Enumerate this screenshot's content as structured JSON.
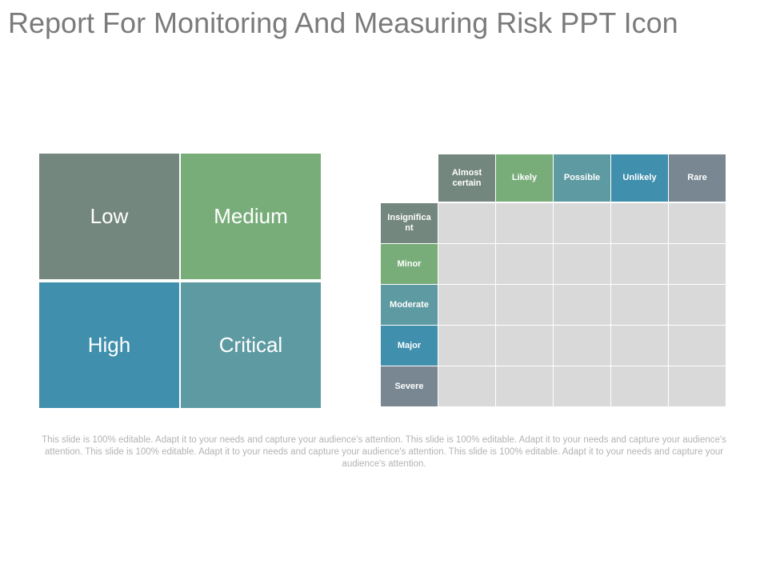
{
  "title": "Report For Monitoring And Measuring Risk PPT Icon",
  "quadrants": {
    "low": "Low",
    "medium": "Medium",
    "high": "High",
    "critical": "Critical"
  },
  "matrix": {
    "columns": [
      "Almost certain",
      "Likely",
      "Possible",
      "Unlikely",
      "Rare"
    ],
    "rows": [
      "Insignificant",
      "Minor",
      "Moderate",
      "Major",
      "Severe"
    ],
    "column_colors": [
      "#74877f",
      "#78ad7a",
      "#5e9aa2",
      "#3f8fad",
      "#788791"
    ],
    "row_colors": [
      "#74877f",
      "#78ad7a",
      "#5e9aa2",
      "#3f8fad",
      "#788791"
    ]
  },
  "footer": "This slide is 100% editable. Adapt it to your needs and capture your audience's attention. This slide is 100% editable. Adapt it to your needs and capture your audience's attention. This slide is 100% editable. Adapt it to your needs and capture your audience's attention. This slide is 100% editable. Adapt it to your needs and capture your audience's attention."
}
